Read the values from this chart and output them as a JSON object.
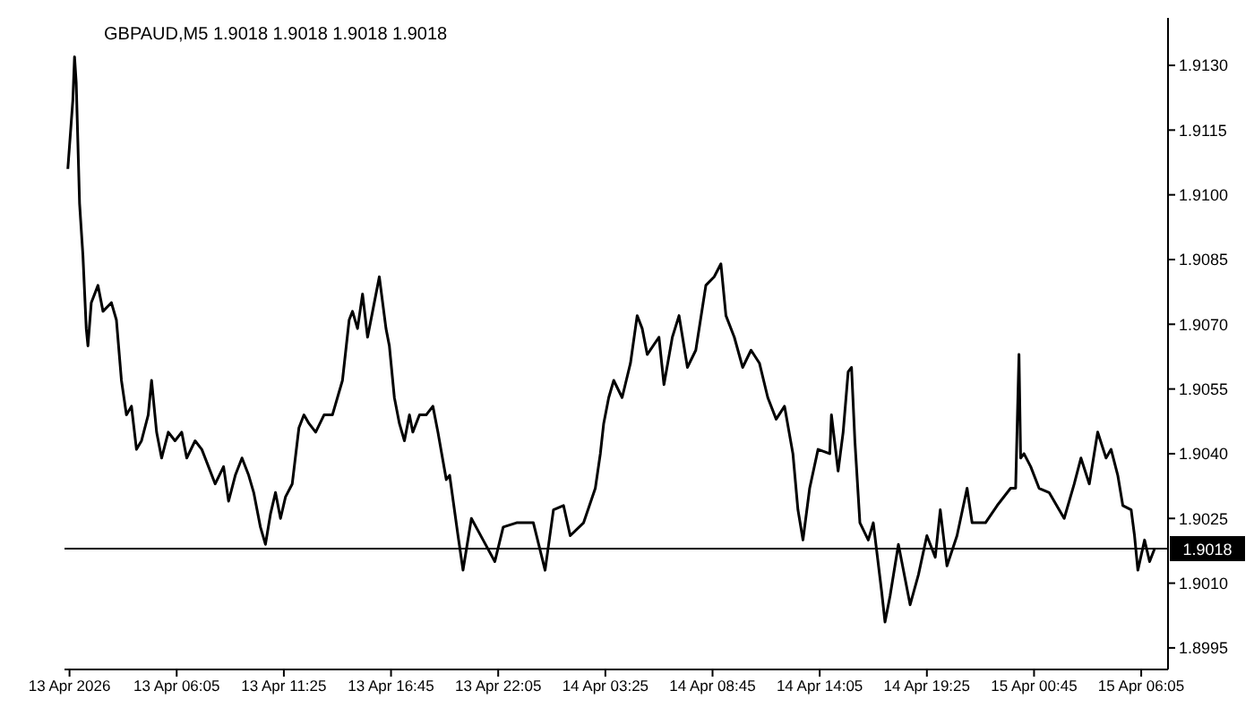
{
  "chart_data": {
    "type": "line",
    "title": "GBPAUD,M5  1.9018 1.9018 1.9018 1.9018",
    "x": [
      "2026-04-13T00:40",
      "2026-04-13T00:55",
      "2026-04-13T01:00",
      "2026-04-13T01:05",
      "2026-04-13T01:15",
      "2026-04-13T01:25",
      "2026-04-13T01:35",
      "2026-04-13T01:40",
      "2026-04-13T01:50",
      "2026-04-13T02:10",
      "2026-04-13T02:25",
      "2026-04-13T02:50",
      "2026-04-13T03:05",
      "2026-04-13T03:20",
      "2026-04-13T03:35",
      "2026-04-13T03:50",
      "2026-04-13T04:05",
      "2026-04-13T04:20",
      "2026-04-13T04:40",
      "2026-04-13T04:50",
      "2026-04-13T05:05",
      "2026-04-13T05:20",
      "2026-04-13T05:40",
      "2026-04-13T06:00",
      "2026-04-13T06:20",
      "2026-04-13T06:35",
      "2026-04-13T07:00",
      "2026-04-13T07:20",
      "2026-04-13T07:40",
      "2026-04-13T08:00",
      "2026-04-13T08:25",
      "2026-04-13T08:40",
      "2026-04-13T09:00",
      "2026-04-13T09:20",
      "2026-04-13T09:40",
      "2026-04-13T09:55",
      "2026-04-13T10:15",
      "2026-04-13T10:30",
      "2026-04-13T10:45",
      "2026-04-13T11:00",
      "2026-04-13T11:15",
      "2026-04-13T11:30",
      "2026-04-13T11:50",
      "2026-04-13T12:10",
      "2026-04-13T12:25",
      "2026-04-13T12:40",
      "2026-04-13T13:00",
      "2026-04-13T13:25",
      "2026-04-13T13:50",
      "2026-04-13T14:20",
      "2026-04-13T14:40",
      "2026-04-13T14:50",
      "2026-04-13T15:05",
      "2026-04-13T15:20",
      "2026-04-13T15:35",
      "2026-04-13T15:50",
      "2026-04-13T16:10",
      "2026-04-13T16:30",
      "2026-04-13T16:40",
      "2026-04-13T16:55",
      "2026-04-13T17:10",
      "2026-04-13T17:25",
      "2026-04-13T17:40",
      "2026-04-13T17:50",
      "2026-04-13T18:10",
      "2026-04-13T18:30",
      "2026-04-13T18:50",
      "2026-04-13T19:05",
      "2026-04-13T19:30",
      "2026-04-13T19:40",
      "2026-04-13T20:05",
      "2026-04-13T20:20",
      "2026-04-13T20:45",
      "2026-04-13T21:20",
      "2026-04-13T21:55",
      "2026-04-13T22:20",
      "2026-04-13T23:00",
      "2026-04-13T23:50",
      "2026-04-14T00:25",
      "2026-04-14T00:50",
      "2026-04-14T01:20",
      "2026-04-14T01:40",
      "2026-04-14T02:20",
      "2026-04-14T02:55",
      "2026-04-14T03:10",
      "2026-04-14T03:20",
      "2026-04-14T03:35",
      "2026-04-14T03:50",
      "2026-04-14T04:15",
      "2026-04-14T04:40",
      "2026-04-14T05:00",
      "2026-04-14T05:15",
      "2026-04-14T05:30",
      "2026-04-14T06:05",
      "2026-04-14T06:20",
      "2026-04-14T06:45",
      "2026-04-14T07:05",
      "2026-04-14T07:30",
      "2026-04-14T07:55",
      "2026-04-14T08:25",
      "2026-04-14T08:50",
      "2026-04-14T09:10",
      "2026-04-14T09:25",
      "2026-04-14T09:50",
      "2026-04-14T10:15",
      "2026-04-14T10:40",
      "2026-04-14T11:05",
      "2026-04-14T11:30",
      "2026-04-14T11:55",
      "2026-04-14T12:20",
      "2026-04-14T12:45",
      "2026-04-14T13:00",
      "2026-04-14T13:15",
      "2026-04-14T13:35",
      "2026-04-14T14:00",
      "2026-04-14T14:35",
      "2026-04-14T14:40",
      "2026-04-14T15:00",
      "2026-04-14T15:15",
      "2026-04-14T15:30",
      "2026-04-14T15:40",
      "2026-04-14T15:50",
      "2026-04-14T16:05",
      "2026-04-14T16:30",
      "2026-04-14T16:45",
      "2026-04-14T17:10",
      "2026-04-14T17:20",
      "2026-04-14T17:35",
      "2026-04-14T18:00",
      "2026-04-14T18:20",
      "2026-04-14T18:35",
      "2026-04-14T19:00",
      "2026-04-14T19:25",
      "2026-04-14T19:50",
      "2026-04-14T20:05",
      "2026-04-14T20:25",
      "2026-04-14T20:55",
      "2026-04-14T21:25",
      "2026-04-14T21:40",
      "2026-04-14T22:20",
      "2026-04-14T22:55",
      "2026-04-14T23:35",
      "2026-04-14T23:50",
      "2026-04-15T00:00",
      "2026-04-15T00:05",
      "2026-04-15T00:15",
      "2026-04-15T00:35",
      "2026-04-15T01:00",
      "2026-04-15T01:30",
      "2026-04-15T02:15",
      "2026-04-15T02:45",
      "2026-04-15T03:05",
      "2026-04-15T03:30",
      "2026-04-15T03:55",
      "2026-04-15T04:20",
      "2026-04-15T04:35",
      "2026-04-15T04:55",
      "2026-04-15T05:10",
      "2026-04-15T05:35",
      "2026-04-15T05:45",
      "2026-04-15T05:55",
      "2026-04-15T06:15",
      "2026-04-15T06:30",
      "2026-04-15T06:45"
    ],
    "series": [
      {
        "color": "#000000",
        "values": [
          1.9106,
          1.9122,
          1.9132,
          1.9126,
          1.9098,
          1.9086,
          1.9069,
          1.9065,
          1.9075,
          1.9079,
          1.9073,
          1.9075,
          1.9071,
          1.9057,
          1.9049,
          1.9051,
          1.9041,
          1.9043,
          1.9049,
          1.9057,
          1.9045,
          1.9039,
          1.9045,
          1.9043,
          1.9045,
          1.9039,
          1.9043,
          1.9041,
          1.9037,
          1.9033,
          1.9037,
          1.9029,
          1.9035,
          1.9039,
          1.9035,
          1.9031,
          1.9023,
          1.9019,
          1.9026,
          1.9031,
          1.9025,
          1.903,
          1.9033,
          1.9046,
          1.9049,
          1.9047,
          1.9045,
          1.9049,
          1.9049,
          1.9057,
          1.9071,
          1.9073,
          1.9069,
          1.9077,
          1.9067,
          1.9073,
          1.9081,
          1.9069,
          1.9065,
          1.9053,
          1.9047,
          1.9043,
          1.9049,
          1.9045,
          1.9049,
          1.9049,
          1.9051,
          1.9045,
          1.9034,
          1.9035,
          1.9021,
          1.9013,
          1.9025,
          1.902,
          1.9015,
          1.9023,
          1.9024,
          1.9024,
          1.9013,
          1.9027,
          1.9028,
          1.9021,
          1.9024,
          1.9032,
          1.904,
          1.9047,
          1.9053,
          1.9057,
          1.9053,
          1.9061,
          1.9072,
          1.9069,
          1.9063,
          1.9067,
          1.9056,
          1.9067,
          1.9072,
          1.906,
          1.9064,
          1.9079,
          1.9081,
          1.9084,
          1.9072,
          1.9067,
          1.906,
          1.9064,
          1.9061,
          1.9053,
          1.9048,
          1.9051,
          1.904,
          1.9027,
          1.902,
          1.9032,
          1.9041,
          1.904,
          1.9049,
          1.9036,
          1.9045,
          1.9059,
          1.906,
          1.9043,
          1.9024,
          1.902,
          1.9024,
          1.9008,
          1.9001,
          1.9007,
          1.9019,
          1.9011,
          1.9005,
          1.9012,
          1.9021,
          1.9016,
          1.9027,
          1.9014,
          1.9021,
          1.9032,
          1.9024,
          1.9024,
          1.9028,
          1.9032,
          1.9032,
          1.9063,
          1.9039,
          1.904,
          1.9037,
          1.9032,
          1.9031,
          1.9025,
          1.9033,
          1.9039,
          1.9033,
          1.9045,
          1.9039,
          1.9041,
          1.9035,
          1.9028,
          1.9027,
          1.9021,
          1.9013,
          1.902,
          1.9015,
          1.9018
        ]
      }
    ],
    "xlim": [
      "2026-04-13T00:30",
      "2026-04-15T07:25"
    ],
    "xticks": [
      {
        "value": "2026-04-13T00:45",
        "label": "13 Apr 2026"
      },
      {
        "value": "2026-04-13T06:05",
        "label": "13 Apr 06:05"
      },
      {
        "value": "2026-04-13T11:25",
        "label": "13 Apr 11:25"
      },
      {
        "value": "2026-04-13T16:45",
        "label": "13 Apr 16:45"
      },
      {
        "value": "2026-04-13T22:05",
        "label": "13 Apr 22:05"
      },
      {
        "value": "2026-04-14T03:25",
        "label": "14 Apr 03:25"
      },
      {
        "value": "2026-04-14T08:45",
        "label": "14 Apr 08:45"
      },
      {
        "value": "2026-04-14T14:05",
        "label": "14 Apr 14:05"
      },
      {
        "value": "2026-04-14T19:25",
        "label": "14 Apr 19:25"
      },
      {
        "value": "2026-04-15T00:45",
        "label": "15 Apr 00:45"
      },
      {
        "value": "2026-04-15T06:05",
        "label": "15 Apr 06:05"
      }
    ],
    "ylim": [
      1.899,
      1.9141
    ],
    "yticks": [
      {
        "value": 1.8995,
        "label": "1.8995"
      },
      {
        "value": 1.901,
        "label": "1.9010"
      },
      {
        "value": 1.9025,
        "label": "1.9025"
      },
      {
        "value": 1.904,
        "label": "1.9040"
      },
      {
        "value": 1.9055,
        "label": "1.9055"
      },
      {
        "value": 1.907,
        "label": "1.9070"
      },
      {
        "value": 1.9085,
        "label": "1.9085"
      },
      {
        "value": 1.91,
        "label": "1.9100"
      },
      {
        "value": 1.9115,
        "label": "1.9115"
      },
      {
        "value": 1.913,
        "label": "1.9130"
      }
    ],
    "ref_lines": [
      {
        "axis": "y",
        "value": 1.9018,
        "label": "1.9018",
        "color": "#000000"
      }
    ],
    "grid": false,
    "legend": false,
    "marker": "none",
    "line_style": "solid"
  }
}
